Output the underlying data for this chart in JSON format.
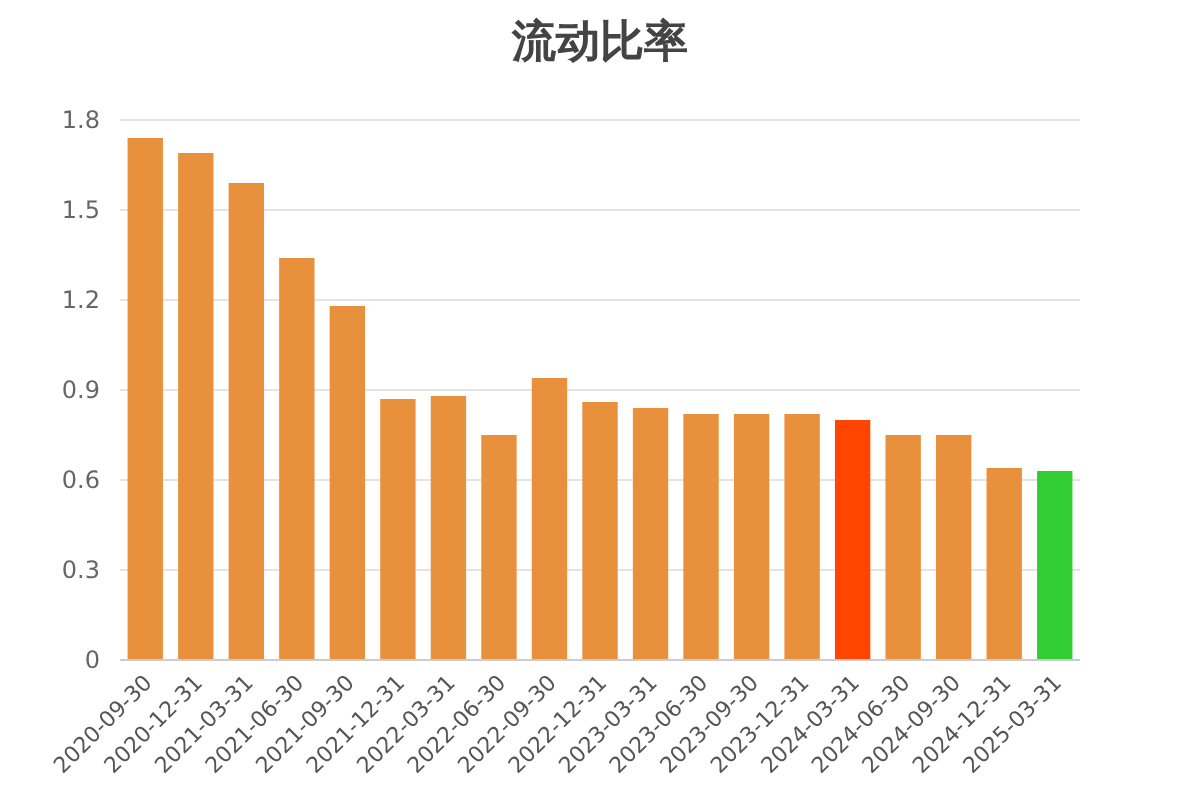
{
  "chart_data": {
    "type": "bar",
    "title": "流动比率",
    "categories": [
      "2020-09-30",
      "2020-12-31",
      "2021-03-31",
      "2021-06-30",
      "2021-09-30",
      "2021-12-31",
      "2022-03-31",
      "2022-06-30",
      "2022-09-30",
      "2022-12-31",
      "2023-03-31",
      "2023-06-30",
      "2023-09-30",
      "2023-12-31",
      "2024-03-31",
      "2024-06-30",
      "2024-09-30",
      "2024-12-31",
      "2025-03-31"
    ],
    "values": [
      1.74,
      1.69,
      1.59,
      1.34,
      1.18,
      0.87,
      0.88,
      0.75,
      0.94,
      0.86,
      0.84,
      0.82,
      0.82,
      0.82,
      0.8,
      0.75,
      0.75,
      0.64,
      0.63
    ],
    "colors": [
      "#e8903c",
      "#e8903c",
      "#e8903c",
      "#e8903c",
      "#e8903c",
      "#e8903c",
      "#e8903c",
      "#e8903c",
      "#e8903c",
      "#e8903c",
      "#e8903c",
      "#e8903c",
      "#e8903c",
      "#e8903c",
      "#ff4500",
      "#e8903c",
      "#e8903c",
      "#e8903c",
      "#32cd32"
    ],
    "ylim": [
      0,
      1.8
    ],
    "yticks": [
      0,
      0.3,
      0.6,
      0.9,
      1.2,
      1.5,
      1.8
    ],
    "grid": "y"
  }
}
